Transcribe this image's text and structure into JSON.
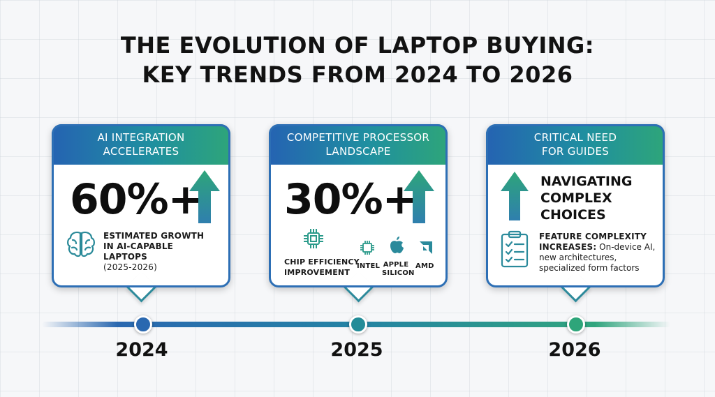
{
  "title": {
    "line1": "THE EVOLUTION OF LAPTOP BUYING:",
    "line2": "KEY TRENDS FROM 2024 TO 2026"
  },
  "cards": [
    {
      "header_line1": "AI INTEGRATION",
      "header_line2": "ACCELERATES",
      "stat": "60%+",
      "desc_line1": "ESTIMATED GROWTH",
      "desc_line2": "IN AI-CAPABLE",
      "desc_line3": "LAPTOPS",
      "desc_line4": "(2025-2026)",
      "icon": "brain-icon"
    },
    {
      "header_line1": "COMPETITIVE PROCESSOR",
      "header_line2": "LANDSCAPE",
      "stat": "30%+",
      "chip_line1": "CHIP EFFICIENCY",
      "chip_line2": "IMPROVEMENT",
      "brands": {
        "intel": "INTEL",
        "apple_line1": "APPLE",
        "apple_line2": "SILICON",
        "amd": "AMD"
      },
      "icon": "chip-icon"
    },
    {
      "header_line1": "CRITICAL NEED",
      "header_line2": "FOR GUIDES",
      "heading_line1": "NAVIGATING",
      "heading_line2": "COMPLEX",
      "heading_line3": "CHOICES",
      "feature_bold_line1": "FEATURE COMPLEXITY",
      "feature_bold_line2": "INCREASES:",
      "feature_rest_line2": " On-device AI,",
      "feature_line3": "new architectures,",
      "feature_line4": "specialized form factors",
      "icon": "clipboard-checklist-icon"
    }
  ],
  "timeline": {
    "years": [
      "2024",
      "2025",
      "2026"
    ],
    "colors": [
      "#2a68b0",
      "#238c98",
      "#2ea57a"
    ]
  }
}
